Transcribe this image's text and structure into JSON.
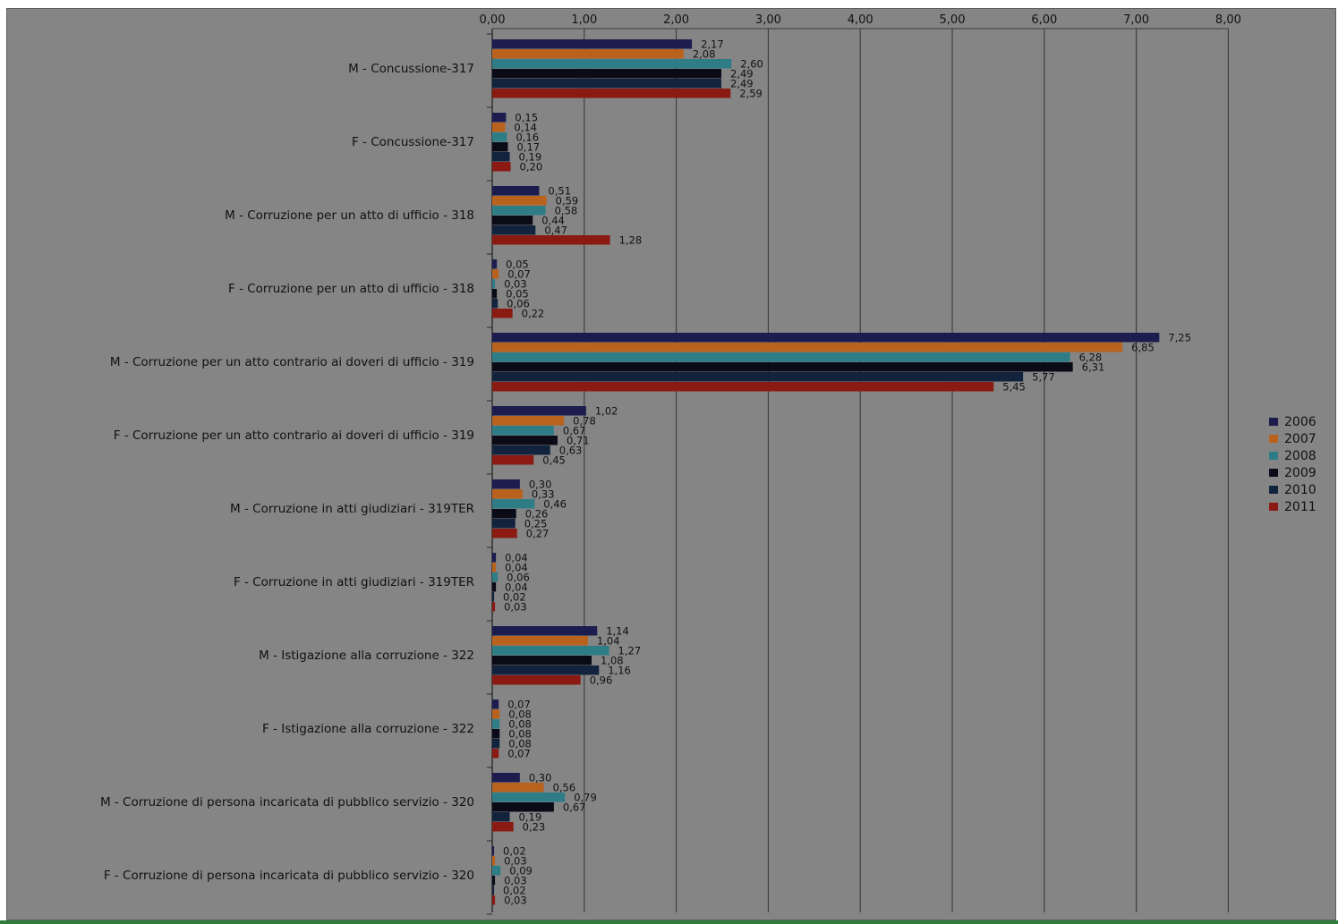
{
  "chart_data": {
    "type": "bar",
    "orientation": "horizontal",
    "x_axis_position": "top",
    "xlim": [
      0,
      8
    ],
    "x_ticks": [
      "0,00",
      "1,00",
      "2,00",
      "3,00",
      "4,00",
      "5,00",
      "6,00",
      "7,00",
      "8,00"
    ],
    "grid": "vertical",
    "legend_position": "right",
    "categories": [
      "M - Concussione-317",
      "F - Concussione-317",
      "M - Corruzione per un atto di ufficio - 318",
      "F - Corruzione per un atto di ufficio - 318",
      "M - Corruzione per un atto contrario ai doveri di ufficio - 319",
      "F - Corruzione per un atto contrario ai doveri di ufficio - 319",
      "M - Corruzione in atti giudiziari - 319TER",
      "F - Corruzione in atti giudiziari - 319TER",
      "M - Istigazione alla corruzione - 322",
      "F - Istigazione alla corruzione - 322",
      "M - Corruzione di persona incaricata di pubblico servizio - 320",
      "F - Corruzione di persona incaricata di pubblico servizio - 320"
    ],
    "series": [
      {
        "name": "2006",
        "color": "#1c1c4e",
        "values": [
          2.17,
          0.15,
          0.51,
          0.05,
          7.25,
          1.02,
          0.3,
          0.04,
          1.14,
          0.07,
          0.3,
          0.02
        ]
      },
      {
        "name": "2007",
        "color": "#b8621e",
        "values": [
          2.08,
          0.14,
          0.59,
          0.07,
          6.85,
          0.78,
          0.33,
          0.04,
          1.04,
          0.08,
          0.56,
          0.03
        ]
      },
      {
        "name": "2008",
        "color": "#2e7d86",
        "values": [
          2.6,
          0.16,
          0.58,
          0.03,
          6.28,
          0.67,
          0.46,
          0.06,
          1.27,
          0.08,
          0.79,
          0.09
        ]
      },
      {
        "name": "2009",
        "color": "#0b0b18",
        "values": [
          2.49,
          0.17,
          0.44,
          0.05,
          6.31,
          0.71,
          0.26,
          0.04,
          1.08,
          0.08,
          0.67,
          0.03
        ]
      },
      {
        "name": "2010",
        "color": "#12233d",
        "values": [
          2.49,
          0.19,
          0.47,
          0.06,
          5.77,
          0.63,
          0.25,
          0.02,
          1.16,
          0.08,
          0.19,
          0.02
        ]
      },
      {
        "name": "2011",
        "color": "#8a1a12",
        "values": [
          2.59,
          0.2,
          1.28,
          0.22,
          5.45,
          0.45,
          0.27,
          0.03,
          0.96,
          0.07,
          0.23,
          0.03
        ]
      }
    ]
  }
}
